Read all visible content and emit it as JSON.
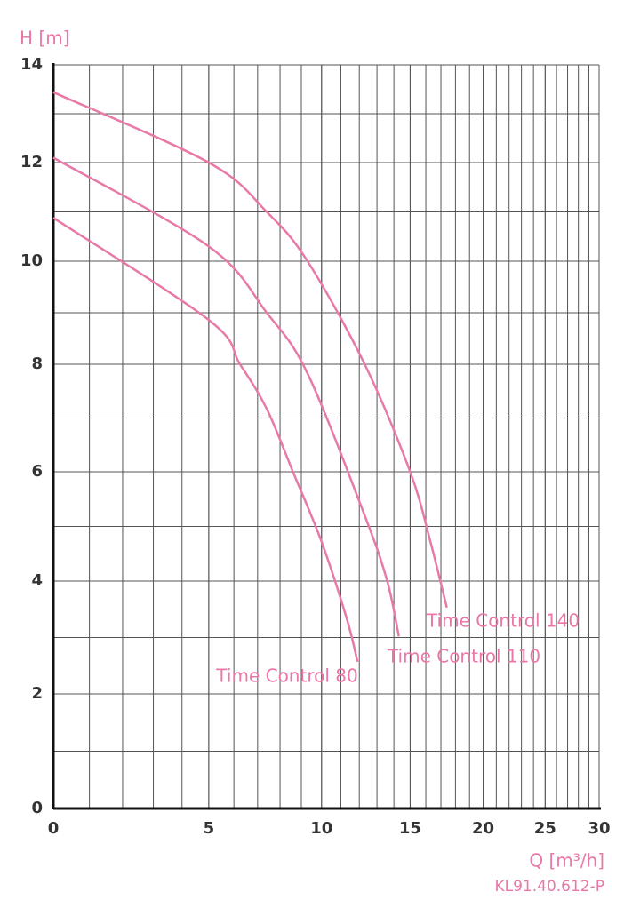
{
  "chart_data": {
    "type": "line",
    "y_label": "H [m]",
    "x_label": "Q [m³/h]",
    "code": "KL91.40.612-P",
    "xlim": [
      0,
      30
    ],
    "xticks": [
      0,
      5,
      10,
      15,
      20,
      25,
      30
    ],
    "ylim": [
      0,
      14
    ],
    "yticks": [
      0,
      2,
      4,
      6,
      8,
      10,
      12,
      14
    ],
    "grid": true,
    "series": [
      {
        "name": "Time Control 140",
        "color": "#e87aa8",
        "x": [
          0,
          5,
          7.4,
          9.3,
          12.3,
          15,
          16.3,
          17.4
        ],
        "values": [
          13.44,
          12,
          11,
          10,
          8,
          6,
          4.72,
          3.53
        ]
      },
      {
        "name": "Time Control 110",
        "color": "#e87aa8",
        "x": [
          0,
          5,
          7.4,
          9.3,
          12.3,
          13.6,
          14.3
        ],
        "values": [
          12.1,
          10.3,
          9,
          7.83,
          5.2,
          4,
          3.02
        ]
      },
      {
        "name": "Time Control 80",
        "color": "#e87aa8",
        "x": [
          0,
          5,
          6.25,
          7.4,
          8.6,
          10,
          11.3,
          11.9
        ],
        "values": [
          10.88,
          8.86,
          8,
          7.17,
          6,
          4.72,
          3.35,
          2.57
        ]
      }
    ]
  }
}
